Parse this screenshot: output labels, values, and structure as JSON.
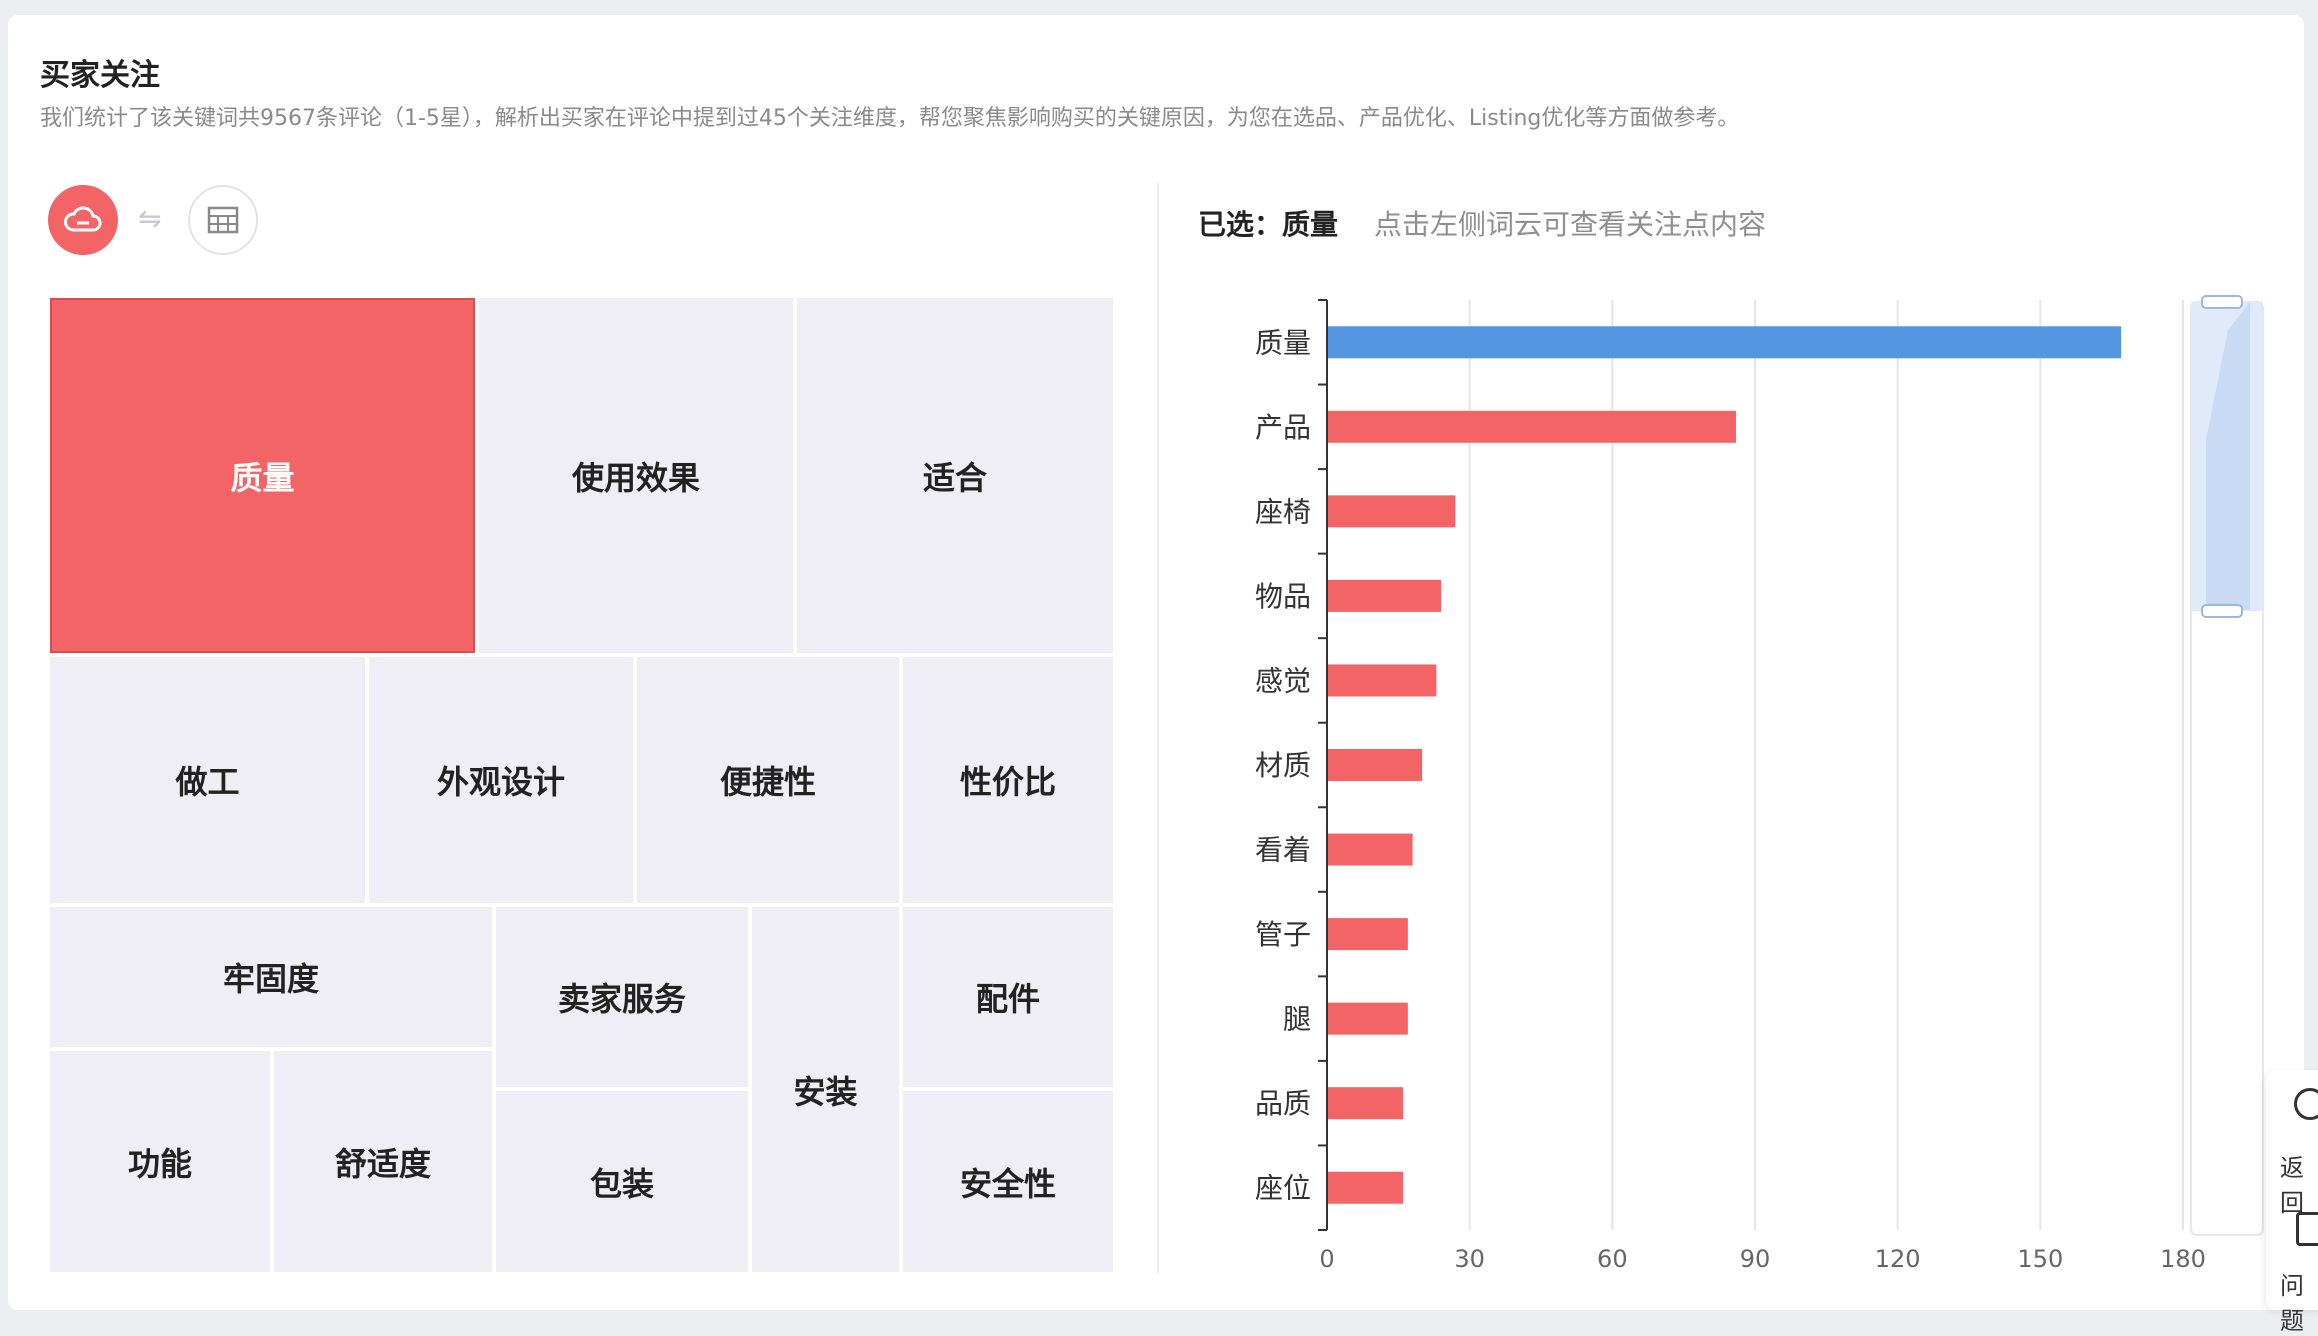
{
  "header": {
    "title": "买家关注",
    "description": "我们统计了该关键词共9567条评论（1-5星），解析出买家在评论中提到过45个关注维度，帮您聚焦影响购买的关键原因，为您在选品、产品优化、Listing优化等方面做参考。"
  },
  "toolbar": {
    "cloud_icon": "cloud-icon",
    "swap_icon": "⇋",
    "table_icon": "table-icon"
  },
  "treemap": {
    "tiles": [
      "质量",
      "使用效果",
      "适合",
      "做工",
      "外观设计",
      "便捷性",
      "性价比",
      "牢固度",
      "卖家服务",
      "安装",
      "配件",
      "功能",
      "舒适度",
      "包装",
      "安全性"
    ],
    "active": "质量",
    "active_color": "#f26466",
    "tile_color": "#eeeef4"
  },
  "selection": {
    "label": "已选：",
    "value": "质量",
    "hint": "点击左侧词云可查看关注点内容"
  },
  "chart_data": {
    "type": "bar",
    "orientation": "horizontal",
    "categories": [
      "质量",
      "产品",
      "座椅",
      "物品",
      "感觉",
      "材质",
      "看着",
      "管子",
      "腿",
      "品质",
      "座位"
    ],
    "values": [
      167,
      86,
      27,
      24,
      23,
      20,
      18,
      17,
      17,
      16,
      16
    ],
    "highlight": "质量",
    "highlight_color": "#5497e0",
    "bar_color": "#f26466",
    "xlim": [
      0,
      180
    ],
    "xticks": [
      0,
      30,
      60,
      90,
      120,
      150,
      180
    ],
    "grid": true
  },
  "side_panel": {
    "items": [
      "返回",
      "问题"
    ]
  }
}
